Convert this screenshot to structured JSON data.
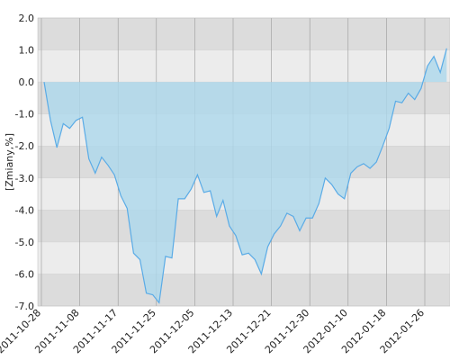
{
  "chart_data": {
    "type": "area",
    "y_label": "[Zmiany,%]",
    "categories": [
      "2011-10-28",
      null,
      null,
      null,
      null,
      null,
      "2011-11-08",
      null,
      null,
      null,
      null,
      null,
      "2011-11-17",
      null,
      null,
      null,
      null,
      null,
      "2011-11-25",
      null,
      null,
      null,
      null,
      null,
      "2011-12-05",
      null,
      null,
      null,
      null,
      null,
      "2011-12-13",
      null,
      null,
      null,
      null,
      null,
      "2011-12-21",
      null,
      null,
      null,
      null,
      null,
      "2011-12-30",
      null,
      null,
      null,
      null,
      null,
      "2012-01-10",
      null,
      null,
      null,
      null,
      null,
      "2012-01-18",
      null,
      null,
      null,
      null,
      null,
      "2012-01-26",
      null,
      null,
      null
    ],
    "values": [
      0.0,
      -1.2,
      -2.05,
      -1.3,
      -1.45,
      -1.2,
      -1.1,
      -2.4,
      -2.85,
      -2.35,
      -2.6,
      -2.9,
      -3.55,
      -3.95,
      -5.35,
      -5.55,
      -6.6,
      -6.65,
      -6.9,
      -5.45,
      -5.5,
      -3.65,
      -3.65,
      -3.35,
      -2.9,
      -3.45,
      -3.4,
      -4.2,
      -3.7,
      -4.5,
      -4.8,
      -5.4,
      -5.35,
      -5.55,
      -6.0,
      -5.15,
      -4.75,
      -4.5,
      -4.1,
      -4.2,
      -4.65,
      -4.25,
      -4.25,
      -3.8,
      -3.0,
      -3.2,
      -3.5,
      -3.65,
      -2.85,
      -2.65,
      -2.55,
      -2.7,
      -2.5,
      -2.0,
      -1.45,
      -0.6,
      -0.65,
      -0.35,
      -0.55,
      -0.2,
      0.5,
      0.8,
      0.3,
      1.05
    ],
    "color": "#5aabe6",
    "ylim": [
      -7,
      2
    ],
    "yticks": [
      {
        "value": -7,
        "label": "-7.0"
      },
      {
        "value": -6,
        "label": "-6.0"
      },
      {
        "value": -5,
        "label": "-5.0"
      },
      {
        "value": -4,
        "label": "-4.0"
      },
      {
        "value": -3,
        "label": "-3.0"
      },
      {
        "value": -2,
        "label": "-2.0"
      },
      {
        "value": -1,
        "label": "-1.0"
      },
      {
        "value": 0,
        "label": "0.0"
      },
      {
        "value": 1,
        "label": "1.0"
      },
      {
        "value": 2,
        "label": "2.0"
      }
    ],
    "grid": true
  }
}
